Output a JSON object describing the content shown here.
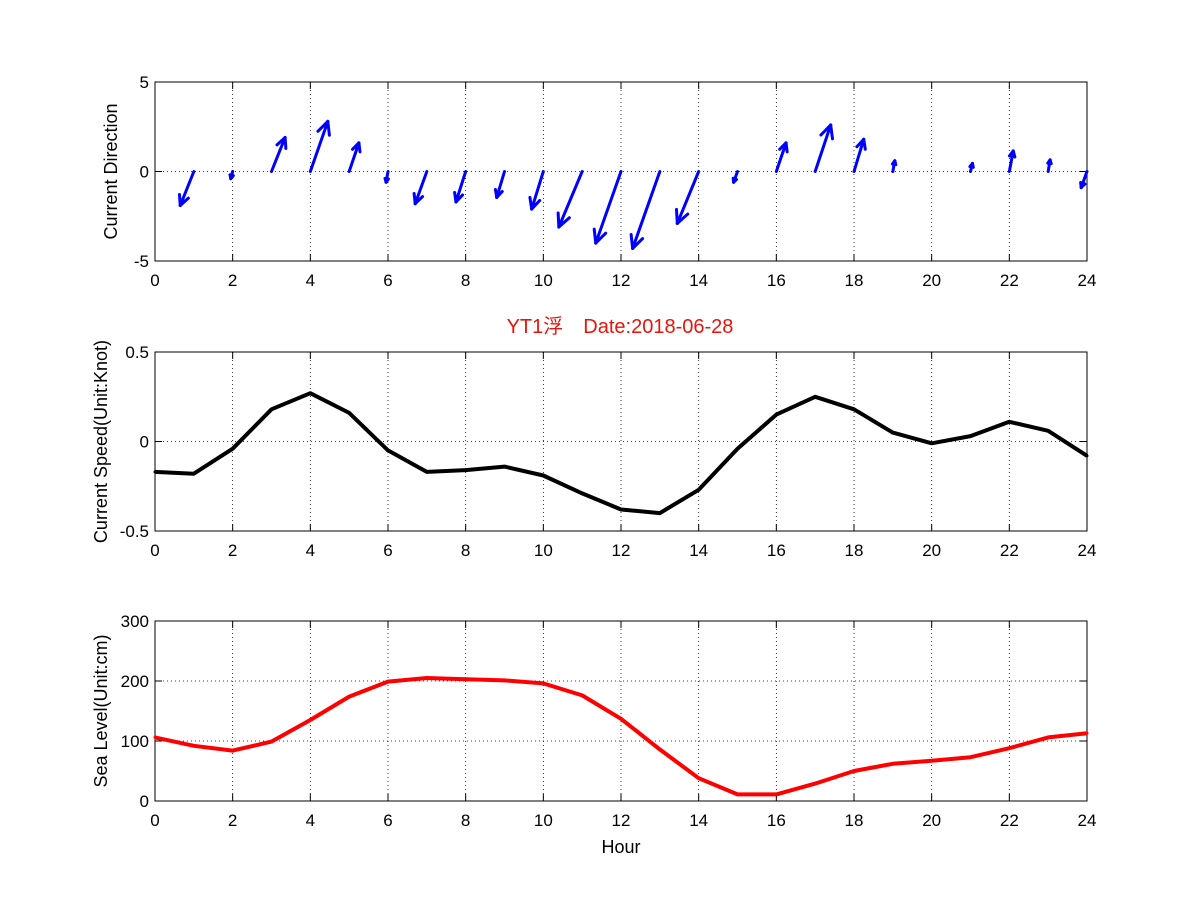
{
  "figure": {
    "title": "YT1浮　Date:2018-06-28",
    "title_color": "#e8140c"
  },
  "chart_data": [
    {
      "type": "quiver",
      "ylabel": "Current Direction",
      "xlabel": "",
      "xlim": [
        0,
        24
      ],
      "ylim": [
        -5,
        5
      ],
      "xticks": [
        0,
        2,
        4,
        6,
        8,
        10,
        12,
        14,
        16,
        18,
        20,
        22,
        24
      ],
      "yticks": [
        -5,
        0,
        5
      ],
      "grid": true,
      "color": "#0000ff",
      "vectors": [
        {
          "x": 0,
          "u": 0,
          "v": 0
        },
        {
          "x": 1,
          "u": -0.35,
          "v": -1.9
        },
        {
          "x": 2,
          "u": -0.05,
          "v": -0.4
        },
        {
          "x": 3,
          "u": 0.35,
          "v": 1.9
        },
        {
          "x": 4,
          "u": 0.45,
          "v": 2.8
        },
        {
          "x": 5,
          "u": 0.25,
          "v": 1.6
        },
        {
          "x": 6,
          "u": -0.05,
          "v": -0.6
        },
        {
          "x": 7,
          "u": -0.3,
          "v": -1.8
        },
        {
          "x": 8,
          "u": -0.25,
          "v": -1.7
        },
        {
          "x": 9,
          "u": -0.2,
          "v": -1.45
        },
        {
          "x": 10,
          "u": -0.3,
          "v": -2.1
        },
        {
          "x": 11,
          "u": -0.6,
          "v": -3.1
        },
        {
          "x": 12,
          "u": -0.65,
          "v": -4.0
        },
        {
          "x": 13,
          "u": -0.7,
          "v": -4.3
        },
        {
          "x": 14,
          "u": -0.55,
          "v": -2.9
        },
        {
          "x": 15,
          "u": -0.1,
          "v": -0.6
        },
        {
          "x": 16,
          "u": 0.25,
          "v": 1.6
        },
        {
          "x": 17,
          "u": 0.4,
          "v": 2.6
        },
        {
          "x": 18,
          "u": 0.25,
          "v": 1.8
        },
        {
          "x": 19,
          "u": 0.05,
          "v": 0.6
        },
        {
          "x": 20,
          "u": 0,
          "v": -0.05
        },
        {
          "x": 21,
          "u": 0.05,
          "v": 0.45
        },
        {
          "x": 22,
          "u": 0.1,
          "v": 1.15
        },
        {
          "x": 23,
          "u": 0.05,
          "v": 0.65
        },
        {
          "x": 24,
          "u": -0.15,
          "v": -0.9
        }
      ]
    },
    {
      "type": "line",
      "ylabel": "Current Speed(Unit:Knot)",
      "xlabel": "",
      "xlim": [
        0,
        24
      ],
      "ylim": [
        -0.5,
        0.5
      ],
      "xticks": [
        0,
        2,
        4,
        6,
        8,
        10,
        12,
        14,
        16,
        18,
        20,
        22,
        24
      ],
      "yticks": [
        -0.5,
        0,
        0.5
      ],
      "grid": true,
      "color": "#000000",
      "x": [
        0,
        1,
        2,
        3,
        4,
        5,
        6,
        7,
        8,
        9,
        10,
        11,
        12,
        13,
        14,
        15,
        16,
        17,
        18,
        19,
        20,
        21,
        22,
        23,
        24
      ],
      "y": [
        -0.17,
        -0.18,
        -0.04,
        0.18,
        0.27,
        0.16,
        -0.05,
        -0.17,
        -0.16,
        -0.14,
        -0.19,
        -0.29,
        -0.38,
        -0.4,
        -0.27,
        -0.04,
        0.15,
        0.25,
        0.18,
        0.05,
        -0.01,
        0.03,
        0.11,
        0.06,
        -0.08
      ]
    },
    {
      "type": "line",
      "ylabel": "Sea Level(Unit:cm)",
      "xlabel": "Hour",
      "xlim": [
        0,
        24
      ],
      "ylim": [
        0,
        300
      ],
      "xticks": [
        0,
        2,
        4,
        6,
        8,
        10,
        12,
        14,
        16,
        18,
        20,
        22,
        24
      ],
      "yticks": [
        0,
        100,
        200,
        300
      ],
      "grid": true,
      "color": "#ff0000",
      "x": [
        0,
        1,
        2,
        3,
        4,
        5,
        6,
        7,
        8,
        9,
        10,
        11,
        12,
        13,
        14,
        15,
        16,
        17,
        18,
        19,
        20,
        21,
        22,
        23,
        24
      ],
      "y": [
        106,
        92,
        84,
        99,
        135,
        174,
        199,
        205,
        203,
        201,
        196,
        176,
        137,
        86,
        38,
        11,
        11,
        29,
        50,
        62,
        67,
        73,
        88,
        106,
        113
      ]
    }
  ]
}
